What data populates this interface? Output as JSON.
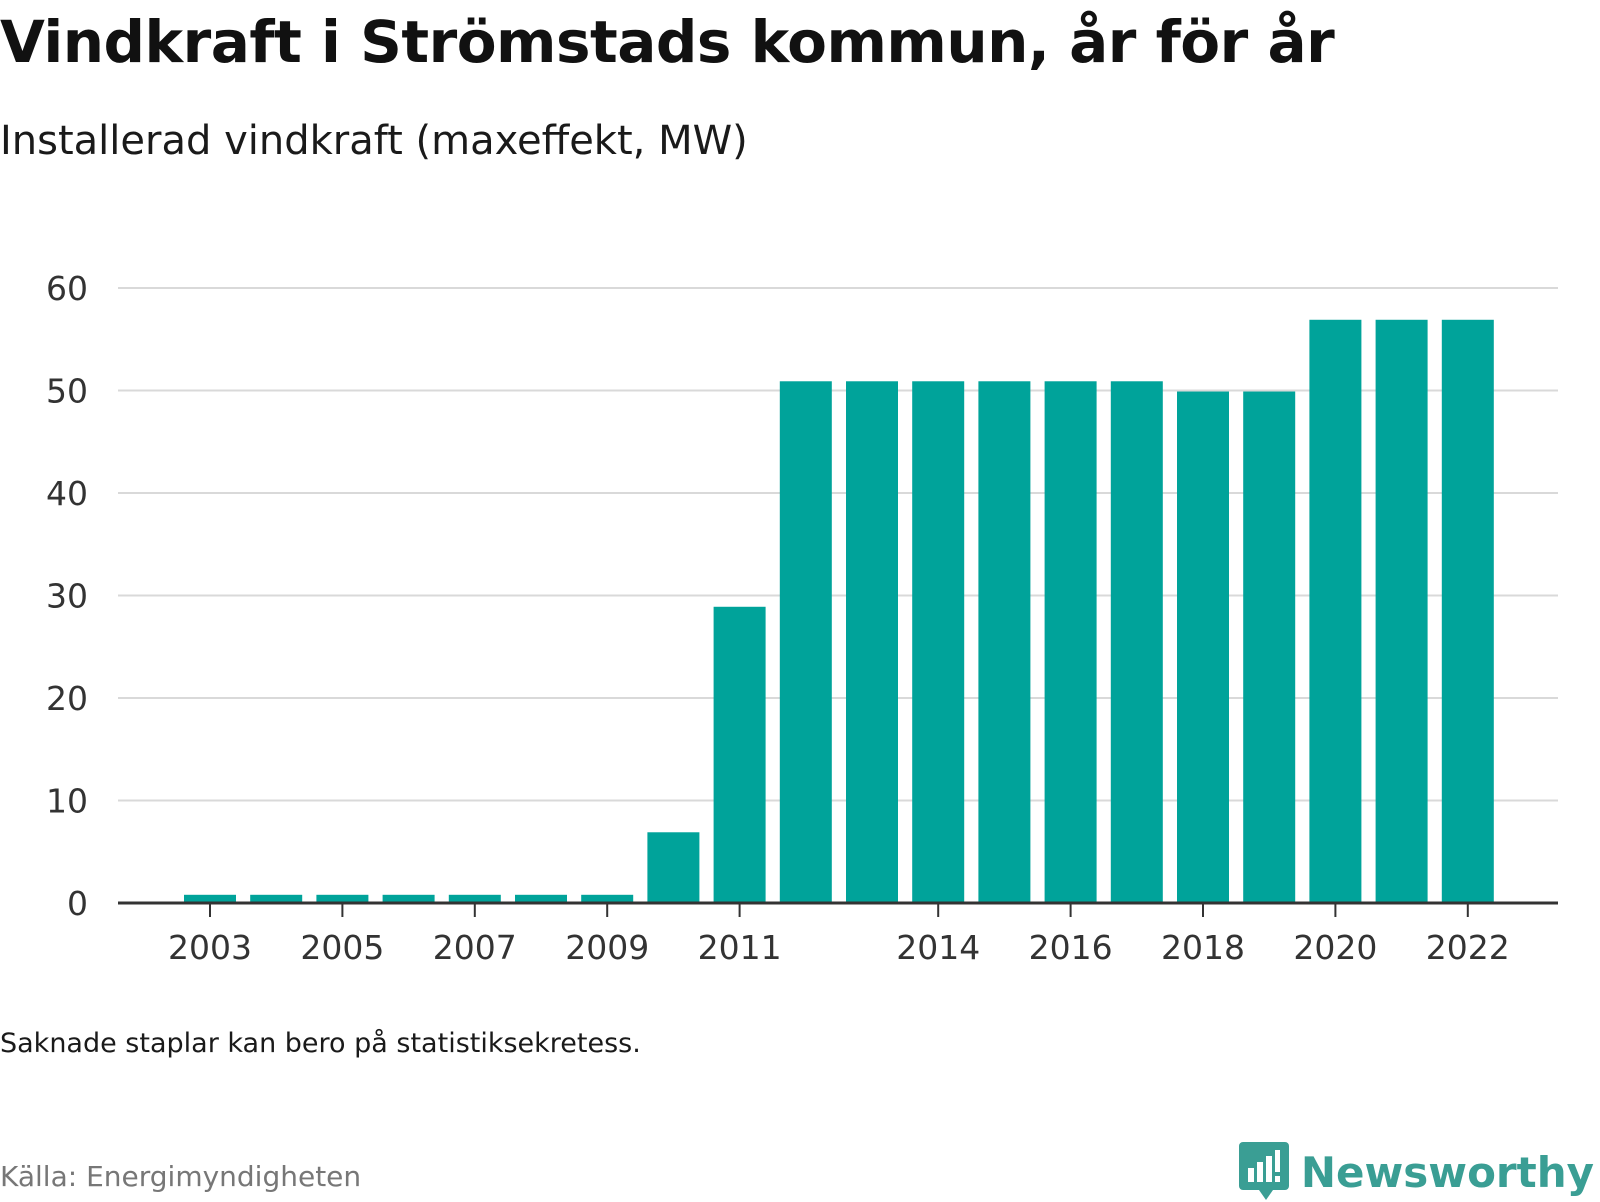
{
  "header": {
    "title": "Vindkraft i Strömstads kommun, år för år",
    "subtitle": "Installerad vindkraft (maxeffekt, MW)"
  },
  "footer": {
    "note": "Saknade staplar kan bero på statistiksekretess.",
    "source": "Källa: Energimyndigheten",
    "brand": "Newsworthy"
  },
  "colors": {
    "bar": "#00a39a",
    "grid": "#d9d9d9",
    "axis": "#333333",
    "brand": "#3a9e94"
  },
  "chart_data": {
    "type": "bar",
    "title": "Vindkraft i Strömstads kommun, år för år",
    "subtitle": "Installerad vindkraft (maxeffekt, MW)",
    "categories": [
      "2003",
      "2004",
      "2005",
      "2006",
      "2007",
      "2008",
      "2009",
      "2010",
      "2011",
      "2012",
      "2013",
      "2014",
      "2015",
      "2016",
      "2017",
      "2018",
      "2019",
      "2020",
      "2021",
      "2022"
    ],
    "values": [
      0.8,
      0.8,
      0.8,
      0.8,
      0.8,
      0.8,
      0.8,
      6.9,
      28.9,
      50.9,
      50.9,
      50.9,
      50.9,
      50.9,
      50.9,
      49.9,
      49.9,
      56.9,
      56.9,
      56.9
    ],
    "xtick_labels": [
      "2003",
      "2005",
      "2007",
      "2009",
      "2011",
      "2014",
      "2016",
      "2018",
      "2020",
      "2022"
    ],
    "yticks": [
      0,
      10,
      20,
      30,
      40,
      50,
      60
    ],
    "ylim": [
      0,
      60
    ],
    "grid": true,
    "legend": "none"
  }
}
